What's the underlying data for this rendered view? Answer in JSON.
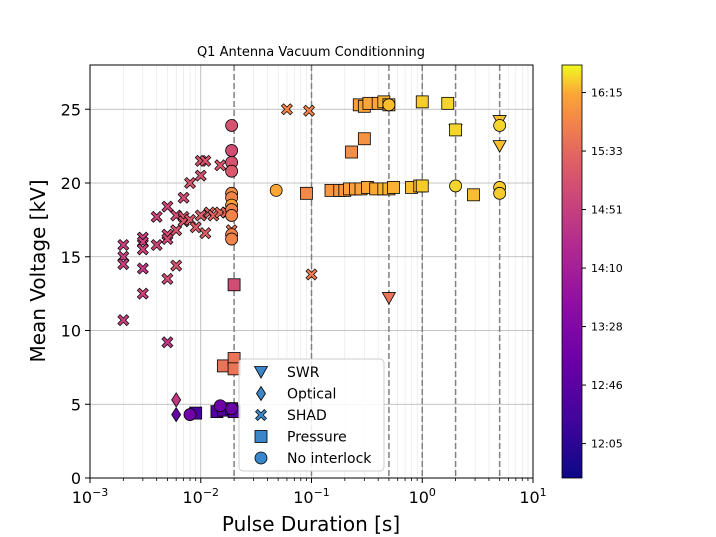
{
  "chart_data": {
    "type": "scatter",
    "title": "Q1 Antenna Vacuum Conditionning",
    "xlabel": "Pulse Duration [s]",
    "ylabel": "Mean Voltage [kV]",
    "x_scale": "log",
    "xlim": [
      0.001,
      10
    ],
    "ylim": [
      0,
      28
    ],
    "x_ticks": [
      0.001,
      0.01,
      0.1,
      1,
      10
    ],
    "x_tick_labels": [
      {
        "base": "10",
        "exp": "−3"
      },
      {
        "base": "10",
        "exp": "−2"
      },
      {
        "base": "10",
        "exp": "−1"
      },
      {
        "base": "10",
        "exp": "0"
      },
      {
        "base": "10",
        "exp": "1"
      }
    ],
    "y_ticks": [
      0,
      5,
      10,
      15,
      20,
      25
    ],
    "y_tick_labels": [
      "0",
      "5",
      "10",
      "15",
      "20",
      "25"
    ],
    "grid": true,
    "vertical_lines_x": [
      0.02,
      0.1,
      0.5,
      1,
      2,
      5
    ],
    "legend_position": "bottom-center",
    "legend": [
      {
        "label": "SWR",
        "marker": "triangle-down"
      },
      {
        "label": "Optical",
        "marker": "diamond"
      },
      {
        "label": "SHAD",
        "marker": "x"
      },
      {
        "label": "Pressure",
        "marker": "square"
      },
      {
        "label": "No interlock",
        "marker": "circle"
      }
    ],
    "colorbar": {
      "tick_labels": [
        "12:05",
        "12:46",
        "13:28",
        "14:10",
        "14:51",
        "15:33",
        "16:15"
      ],
      "tick_values": [
        0.1,
        0.27,
        0.44,
        0.61,
        0.78,
        0.95,
        1.12
      ],
      "colormap": "plasma"
    },
    "series": [
      {
        "marker": "triangle-down",
        "points": [
          {
            "x": 0.5,
            "y": 12.2,
            "c": 0.82
          },
          {
            "x": 2,
            "y": 23.6,
            "c": 0.88
          },
          {
            "x": 5,
            "y": 24.2,
            "c": 0.95
          },
          {
            "x": 5,
            "y": 22.5,
            "c": 0.95
          }
        ]
      },
      {
        "marker": "diamond",
        "points": [
          {
            "x": 0.006,
            "y": 5.3,
            "c": 0.62
          },
          {
            "x": 0.006,
            "y": 4.3,
            "c": 0.25
          }
        ]
      },
      {
        "marker": "x",
        "points": [
          {
            "x": 0.002,
            "y": 15.8,
            "c": 0.65
          },
          {
            "x": 0.002,
            "y": 15.0,
            "c": 0.65
          },
          {
            "x": 0.002,
            "y": 14.5,
            "c": 0.65
          },
          {
            "x": 0.002,
            "y": 10.7,
            "c": 0.65
          },
          {
            "x": 0.003,
            "y": 16.3,
            "c": 0.66
          },
          {
            "x": 0.003,
            "y": 16.0,
            "c": 0.66
          },
          {
            "x": 0.003,
            "y": 15.5,
            "c": 0.66
          },
          {
            "x": 0.003,
            "y": 14.2,
            "c": 0.63
          },
          {
            "x": 0.003,
            "y": 12.5,
            "c": 0.66
          },
          {
            "x": 0.004,
            "y": 17.7,
            "c": 0.67
          },
          {
            "x": 0.004,
            "y": 15.8,
            "c": 0.68
          },
          {
            "x": 0.005,
            "y": 18.4,
            "c": 0.68
          },
          {
            "x": 0.005,
            "y": 16.5,
            "c": 0.7
          },
          {
            "x": 0.005,
            "y": 16.2,
            "c": 0.7
          },
          {
            "x": 0.005,
            "y": 13.5,
            "c": 0.7
          },
          {
            "x": 0.005,
            "y": 9.2,
            "c": 0.62
          },
          {
            "x": 0.006,
            "y": 17.8,
            "c": 0.7
          },
          {
            "x": 0.006,
            "y": 16.8,
            "c": 0.72
          },
          {
            "x": 0.006,
            "y": 14.4,
            "c": 0.72
          },
          {
            "x": 0.007,
            "y": 19.0,
            "c": 0.7
          },
          {
            "x": 0.007,
            "y": 17.7,
            "c": 0.74
          },
          {
            "x": 0.007,
            "y": 17.4,
            "c": 0.74
          },
          {
            "x": 0.008,
            "y": 20.0,
            "c": 0.72
          },
          {
            "x": 0.008,
            "y": 17.5,
            "c": 0.74
          },
          {
            "x": 0.009,
            "y": 17.0,
            "c": 0.75
          },
          {
            "x": 0.01,
            "y": 21.5,
            "c": 0.72
          },
          {
            "x": 0.01,
            "y": 20.5,
            "c": 0.72
          },
          {
            "x": 0.01,
            "y": 17.8,
            "c": 0.76
          },
          {
            "x": 0.011,
            "y": 21.5,
            "c": 0.73
          },
          {
            "x": 0.011,
            "y": 16.6,
            "c": 0.76
          },
          {
            "x": 0.012,
            "y": 18.0,
            "c": 0.78
          },
          {
            "x": 0.013,
            "y": 17.8,
            "c": 0.78
          },
          {
            "x": 0.015,
            "y": 18.0,
            "c": 0.8
          },
          {
            "x": 0.015,
            "y": 21.2,
            "c": 0.74
          },
          {
            "x": 0.017,
            "y": 18.0,
            "c": 0.8
          },
          {
            "x": 0.019,
            "y": 16.8,
            "c": 0.82
          },
          {
            "x": 0.06,
            "y": 25.0,
            "c": 0.86
          },
          {
            "x": 0.095,
            "y": 24.9,
            "c": 0.86
          },
          {
            "x": 0.1,
            "y": 13.8,
            "c": 0.84
          }
        ]
      },
      {
        "marker": "square",
        "points": [
          {
            "x": 0.009,
            "y": 4.4,
            "c": 0.17
          },
          {
            "x": 0.014,
            "y": 4.5,
            "c": 0.2
          },
          {
            "x": 0.016,
            "y": 4.6,
            "c": 0.2
          },
          {
            "x": 0.019,
            "y": 4.7,
            "c": 0.22
          },
          {
            "x": 0.02,
            "y": 4.5,
            "c": 0.22
          },
          {
            "x": 0.016,
            "y": 7.6,
            "c": 0.82
          },
          {
            "x": 0.02,
            "y": 8.1,
            "c": 0.82
          },
          {
            "x": 0.02,
            "y": 7.4,
            "c": 0.82
          },
          {
            "x": 0.02,
            "y": 13.1,
            "c": 0.7
          },
          {
            "x": 0.09,
            "y": 19.3,
            "c": 0.87
          },
          {
            "x": 0.15,
            "y": 19.5,
            "c": 0.9
          },
          {
            "x": 0.18,
            "y": 19.5,
            "c": 0.9
          },
          {
            "x": 0.2,
            "y": 19.5,
            "c": 0.9
          },
          {
            "x": 0.22,
            "y": 19.6,
            "c": 0.92
          },
          {
            "x": 0.25,
            "y": 19.6,
            "c": 0.92
          },
          {
            "x": 0.28,
            "y": 19.6,
            "c": 0.92
          },
          {
            "x": 0.32,
            "y": 19.7,
            "c": 0.93
          },
          {
            "x": 0.38,
            "y": 19.6,
            "c": 0.93
          },
          {
            "x": 0.45,
            "y": 19.6,
            "c": 0.94
          },
          {
            "x": 0.5,
            "y": 19.6,
            "c": 0.94
          },
          {
            "x": 0.55,
            "y": 19.7,
            "c": 0.94
          },
          {
            "x": 0.8,
            "y": 19.7,
            "c": 0.95
          },
          {
            "x": 0.95,
            "y": 19.8,
            "c": 0.95
          },
          {
            "x": 1.0,
            "y": 19.8,
            "c": 0.96
          },
          {
            "x": 0.23,
            "y": 22.1,
            "c": 0.88
          },
          {
            "x": 0.3,
            "y": 23.0,
            "c": 0.89
          },
          {
            "x": 0.27,
            "y": 25.3,
            "c": 0.92
          },
          {
            "x": 0.3,
            "y": 25.2,
            "c": 0.92
          },
          {
            "x": 0.33,
            "y": 25.4,
            "c": 0.93
          },
          {
            "x": 0.4,
            "y": 25.4,
            "c": 0.93
          },
          {
            "x": 0.45,
            "y": 25.5,
            "c": 0.94
          },
          {
            "x": 0.5,
            "y": 25.3,
            "c": 0.94
          },
          {
            "x": 1.0,
            "y": 25.5,
            "c": 0.96
          },
          {
            "x": 1.7,
            "y": 25.4,
            "c": 0.97
          },
          {
            "x": 2.0,
            "y": 23.6,
            "c": 0.97
          },
          {
            "x": 2.9,
            "y": 19.2,
            "c": 0.95
          }
        ]
      },
      {
        "marker": "circle",
        "points": [
          {
            "x": 0.008,
            "y": 4.3,
            "c": 0.3
          },
          {
            "x": 0.015,
            "y": 4.9,
            "c": 0.3
          },
          {
            "x": 0.019,
            "y": 4.7,
            "c": 0.28
          },
          {
            "x": 0.019,
            "y": 23.9,
            "c": 0.72
          },
          {
            "x": 0.019,
            "y": 22.2,
            "c": 0.7
          },
          {
            "x": 0.019,
            "y": 21.4,
            "c": 0.72
          },
          {
            "x": 0.019,
            "y": 20.8,
            "c": 0.74
          },
          {
            "x": 0.019,
            "y": 19.3,
            "c": 0.88
          },
          {
            "x": 0.019,
            "y": 19.0,
            "c": 0.86
          },
          {
            "x": 0.019,
            "y": 18.5,
            "c": 0.92
          },
          {
            "x": 0.019,
            "y": 18.2,
            "c": 0.86
          },
          {
            "x": 0.019,
            "y": 17.8,
            "c": 0.86
          },
          {
            "x": 0.019,
            "y": 16.5,
            "c": 0.86
          },
          {
            "x": 0.019,
            "y": 16.2,
            "c": 0.86
          },
          {
            "x": 0.048,
            "y": 19.5,
            "c": 0.93
          },
          {
            "x": 0.5,
            "y": 25.3,
            "c": 0.95
          },
          {
            "x": 2.0,
            "y": 19.8,
            "c": 0.97
          },
          {
            "x": 5.0,
            "y": 23.9,
            "c": 0.97
          },
          {
            "x": 5.0,
            "y": 19.7,
            "c": 0.96
          },
          {
            "x": 5.0,
            "y": 19.3,
            "c": 0.96
          }
        ]
      }
    ]
  }
}
